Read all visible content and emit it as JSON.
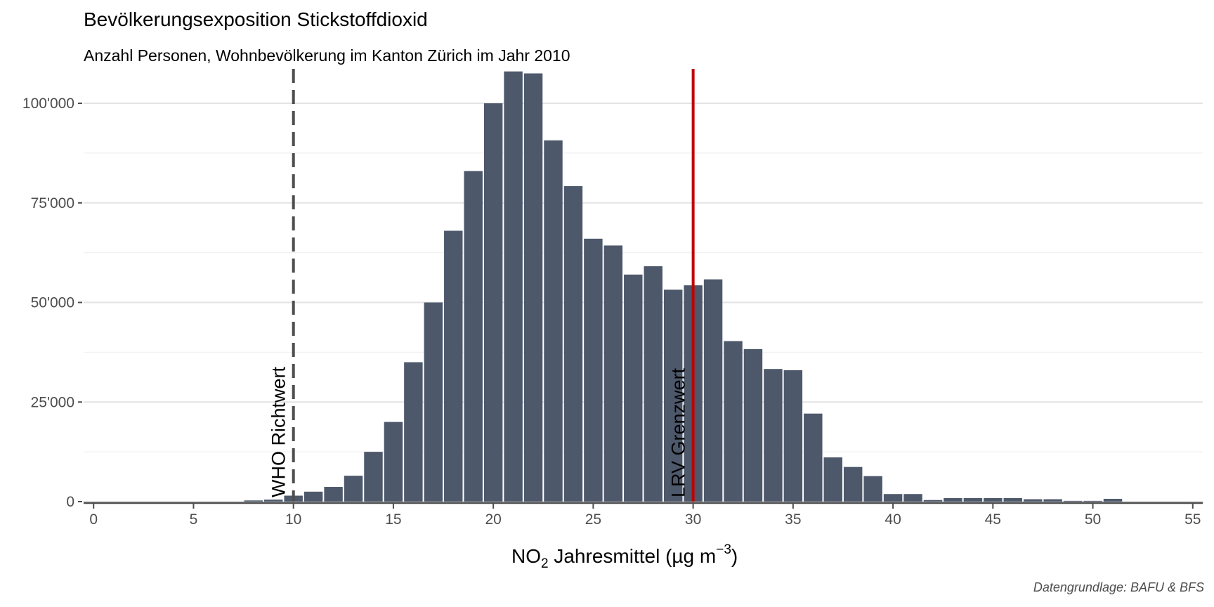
{
  "chart_data": {
    "type": "bar",
    "title": "Bevölkerungsexposition Stickstoffdioxid",
    "subtitle": "Anzahl Personen, Wohnbevölkerung im Kanton Zürich im Jahr 2010",
    "caption": "Datengrundlage: BAFU & BFS",
    "xlabel": {
      "prefix": "NO",
      "sub": "2",
      "middle": " Jahresmittel (µg m",
      "sup": "−3",
      "suffix": ")"
    },
    "ylabel": "",
    "xlim": [
      -0.5,
      55.5
    ],
    "ylim": [
      0,
      109000
    ],
    "x_ticks": [
      0,
      5,
      10,
      15,
      20,
      25,
      30,
      35,
      40,
      45,
      50,
      55
    ],
    "x_tick_labels": [
      "0",
      "5",
      "10",
      "15",
      "20",
      "25",
      "30",
      "35",
      "40",
      "45",
      "50",
      "55"
    ],
    "y_ticks": [
      0,
      25000,
      50000,
      75000,
      100000
    ],
    "y_tick_labels": [
      "0",
      "25'000",
      "50'000",
      "75'000",
      "100'000"
    ],
    "grid": "horizontal",
    "bar_color": "#4e586b",
    "x": [
      8,
      9,
      10,
      11,
      12,
      13,
      14,
      15,
      16,
      17,
      18,
      19,
      20,
      21,
      22,
      23,
      24,
      25,
      26,
      27,
      28,
      29,
      30,
      31,
      32,
      33,
      34,
      35,
      36,
      37,
      38,
      39,
      40,
      41,
      42,
      43,
      44,
      45,
      46,
      47,
      48,
      49,
      50,
      51
    ],
    "values": [
      300,
      500,
      1500,
      2500,
      3700,
      6500,
      12500,
      20000,
      35000,
      50000,
      68000,
      83000,
      100000,
      108000,
      107500,
      90700,
      79200,
      66000,
      64300,
      57000,
      59100,
      53200,
      54300,
      55800,
      40300,
      38300,
      33300,
      33000,
      22100,
      11100,
      8700,
      6400,
      1900,
      1900,
      400,
      900,
      900,
      900,
      900,
      600,
      600,
      200,
      200,
      700
    ],
    "reference_lines": [
      {
        "x": 10,
        "label": "WHO Richtwert",
        "style": "dashed",
        "color": "#4d4d4d"
      },
      {
        "x": 30,
        "label": "LRV Grenzwert",
        "style": "solid",
        "color": "#c00000"
      }
    ]
  }
}
